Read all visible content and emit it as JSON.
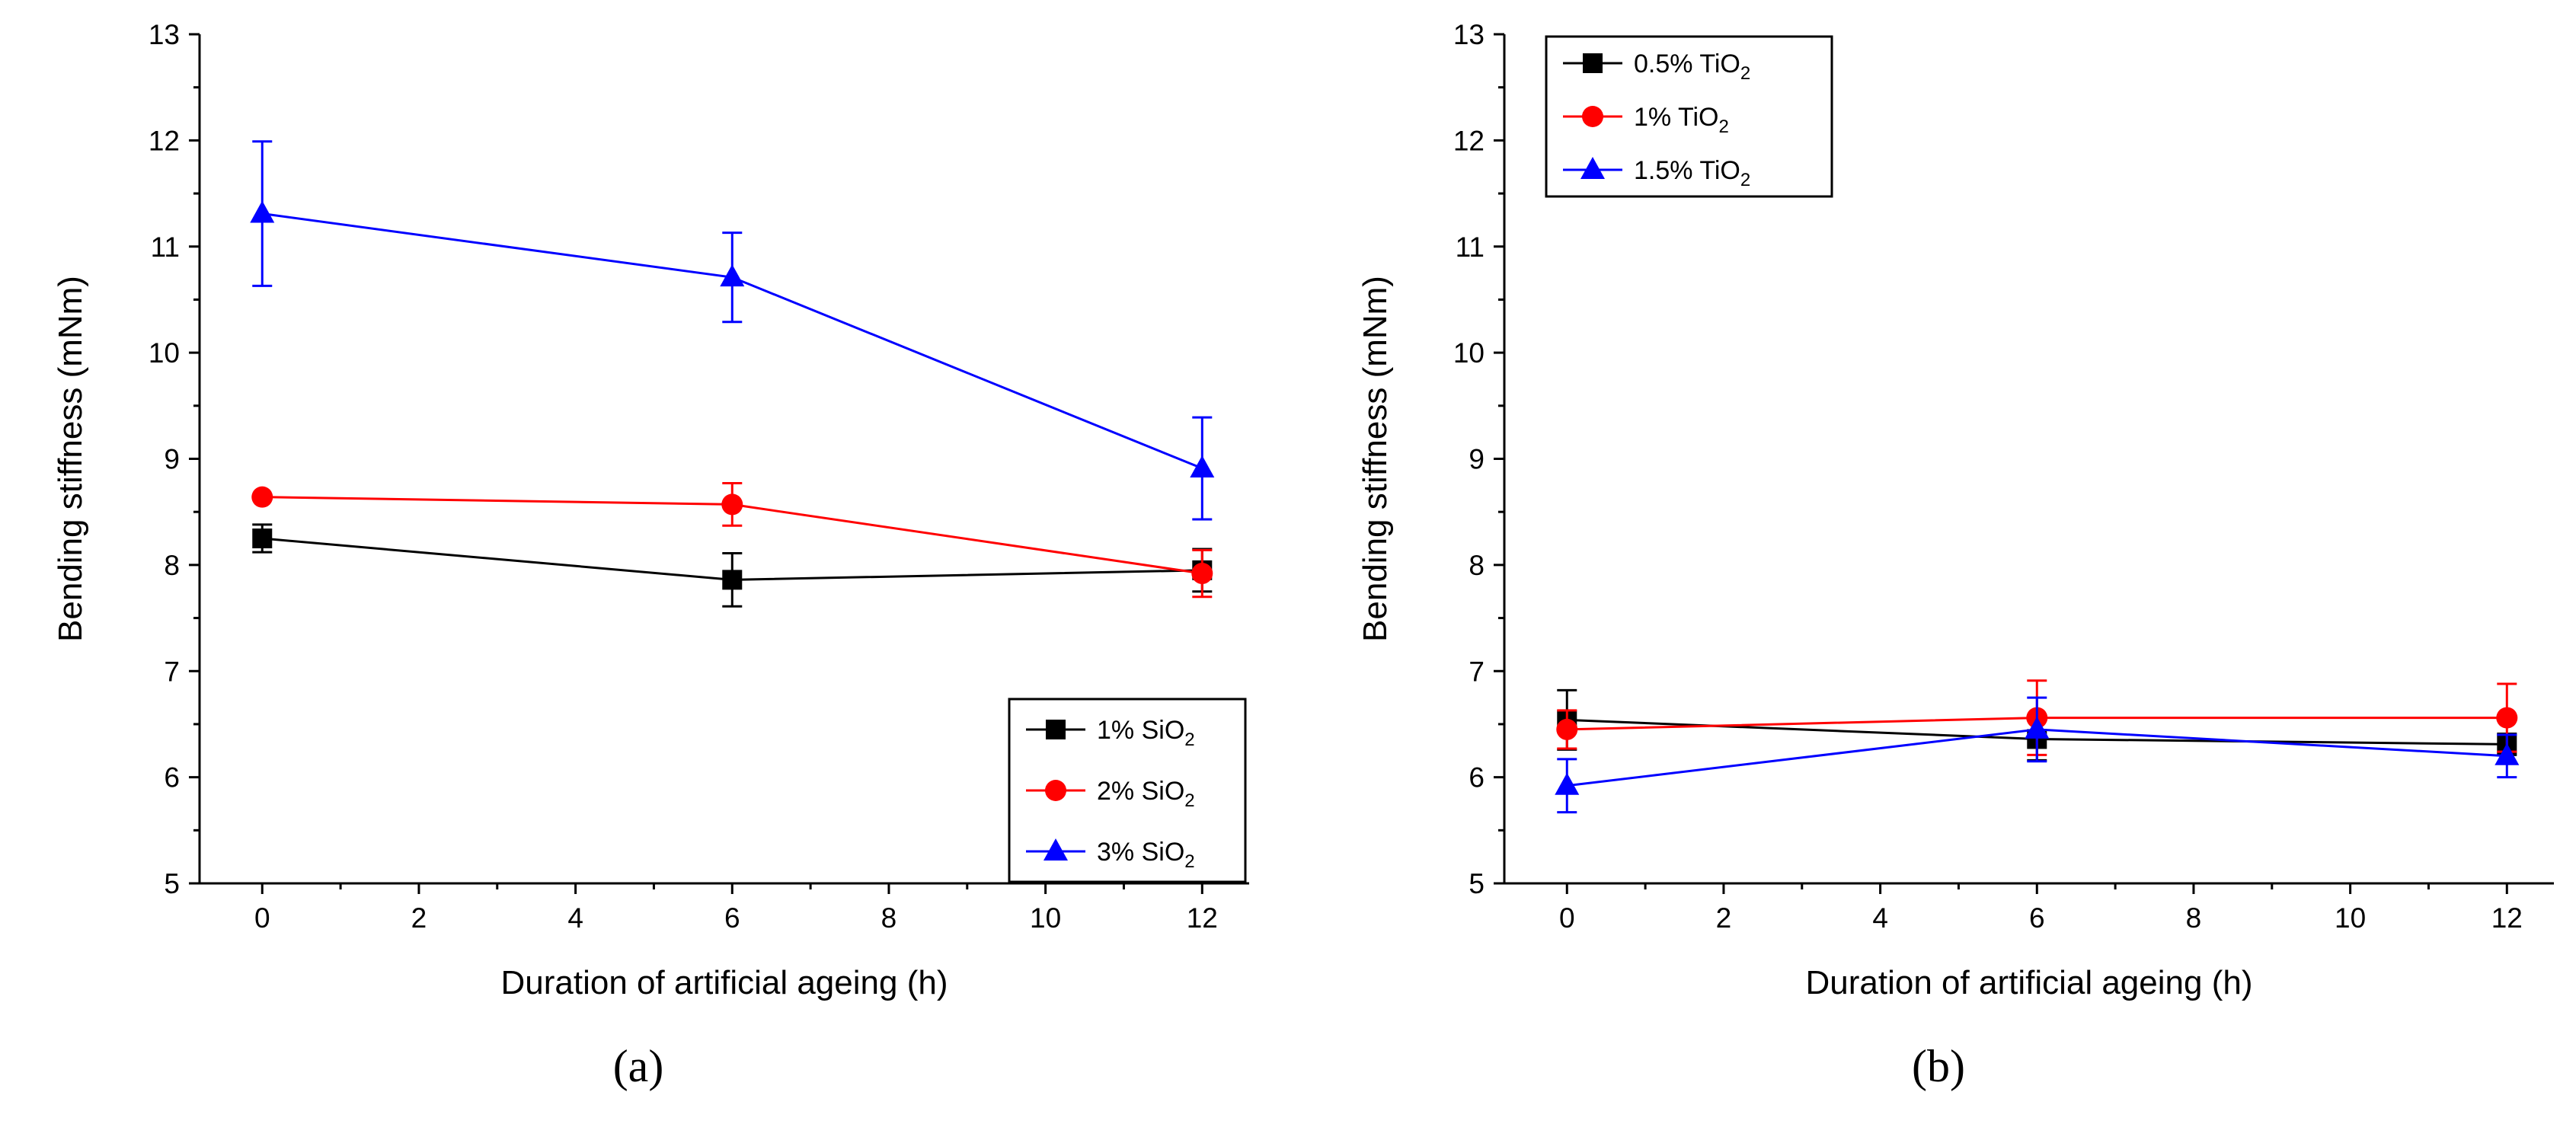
{
  "chart_data": [
    {
      "type": "line",
      "panel_label": "(a)",
      "xlabel": "Duration of artificial ageing (h)",
      "ylabel": "Bending stiffness (mNm)",
      "xlim": [
        -0.8,
        12.6
      ],
      "ylim": [
        5,
        13
      ],
      "xticks": [
        0,
        2,
        4,
        6,
        8,
        10,
        12
      ],
      "yticks": [
        5,
        6,
        7,
        8,
        9,
        10,
        11,
        12,
        13
      ],
      "legend_position": "bottom-right",
      "x": [
        0,
        6,
        12
      ],
      "series": [
        {
          "name": "1% SiO",
          "subscript": "2",
          "color": "#000000",
          "marker": "square",
          "values": [
            8.25,
            7.86,
            7.95
          ],
          "errors": [
            0.13,
            0.25,
            0.2
          ]
        },
        {
          "name": "2% SiO",
          "subscript": "2",
          "color": "#ff0000",
          "marker": "circle",
          "values": [
            8.64,
            8.57,
            7.92
          ],
          "errors": [
            0.0,
            0.2,
            0.22
          ]
        },
        {
          "name": "3% SiO",
          "subscript": "2",
          "color": "#0000ff",
          "marker": "triangle",
          "values": [
            11.31,
            10.71,
            8.91
          ],
          "errors": [
            0.68,
            0.42,
            0.48
          ]
        }
      ]
    },
    {
      "type": "line",
      "panel_label": "(b)",
      "xlabel": "Duration of artificial ageing (h)",
      "ylabel": "Bending stiffness (mNm)",
      "xlim": [
        -0.8,
        12.6
      ],
      "ylim": [
        5,
        13
      ],
      "xticks": [
        0,
        2,
        4,
        6,
        8,
        10,
        12
      ],
      "yticks": [
        5,
        6,
        7,
        8,
        9,
        10,
        11,
        12,
        13
      ],
      "legend_position": "top-left",
      "x": [
        0,
        6,
        12
      ],
      "series": [
        {
          "name": "0.5% TiO",
          "subscript": "2",
          "color": "#000000",
          "marker": "square",
          "values": [
            6.54,
            6.36,
            6.31
          ],
          "errors": [
            0.28,
            0.2,
            0.1
          ]
        },
        {
          "name": "1% TiO",
          "subscript": "2",
          "color": "#ff0000",
          "marker": "circle",
          "values": [
            6.45,
            6.56,
            6.56
          ],
          "errors": [
            0.18,
            0.35,
            0.32
          ]
        },
        {
          "name": "1.5% TiO",
          "subscript": "2",
          "color": "#0000ff",
          "marker": "triangle",
          "values": [
            5.92,
            6.45,
            6.2
          ],
          "errors": [
            0.25,
            0.3,
            0.2
          ]
        }
      ]
    }
  ]
}
